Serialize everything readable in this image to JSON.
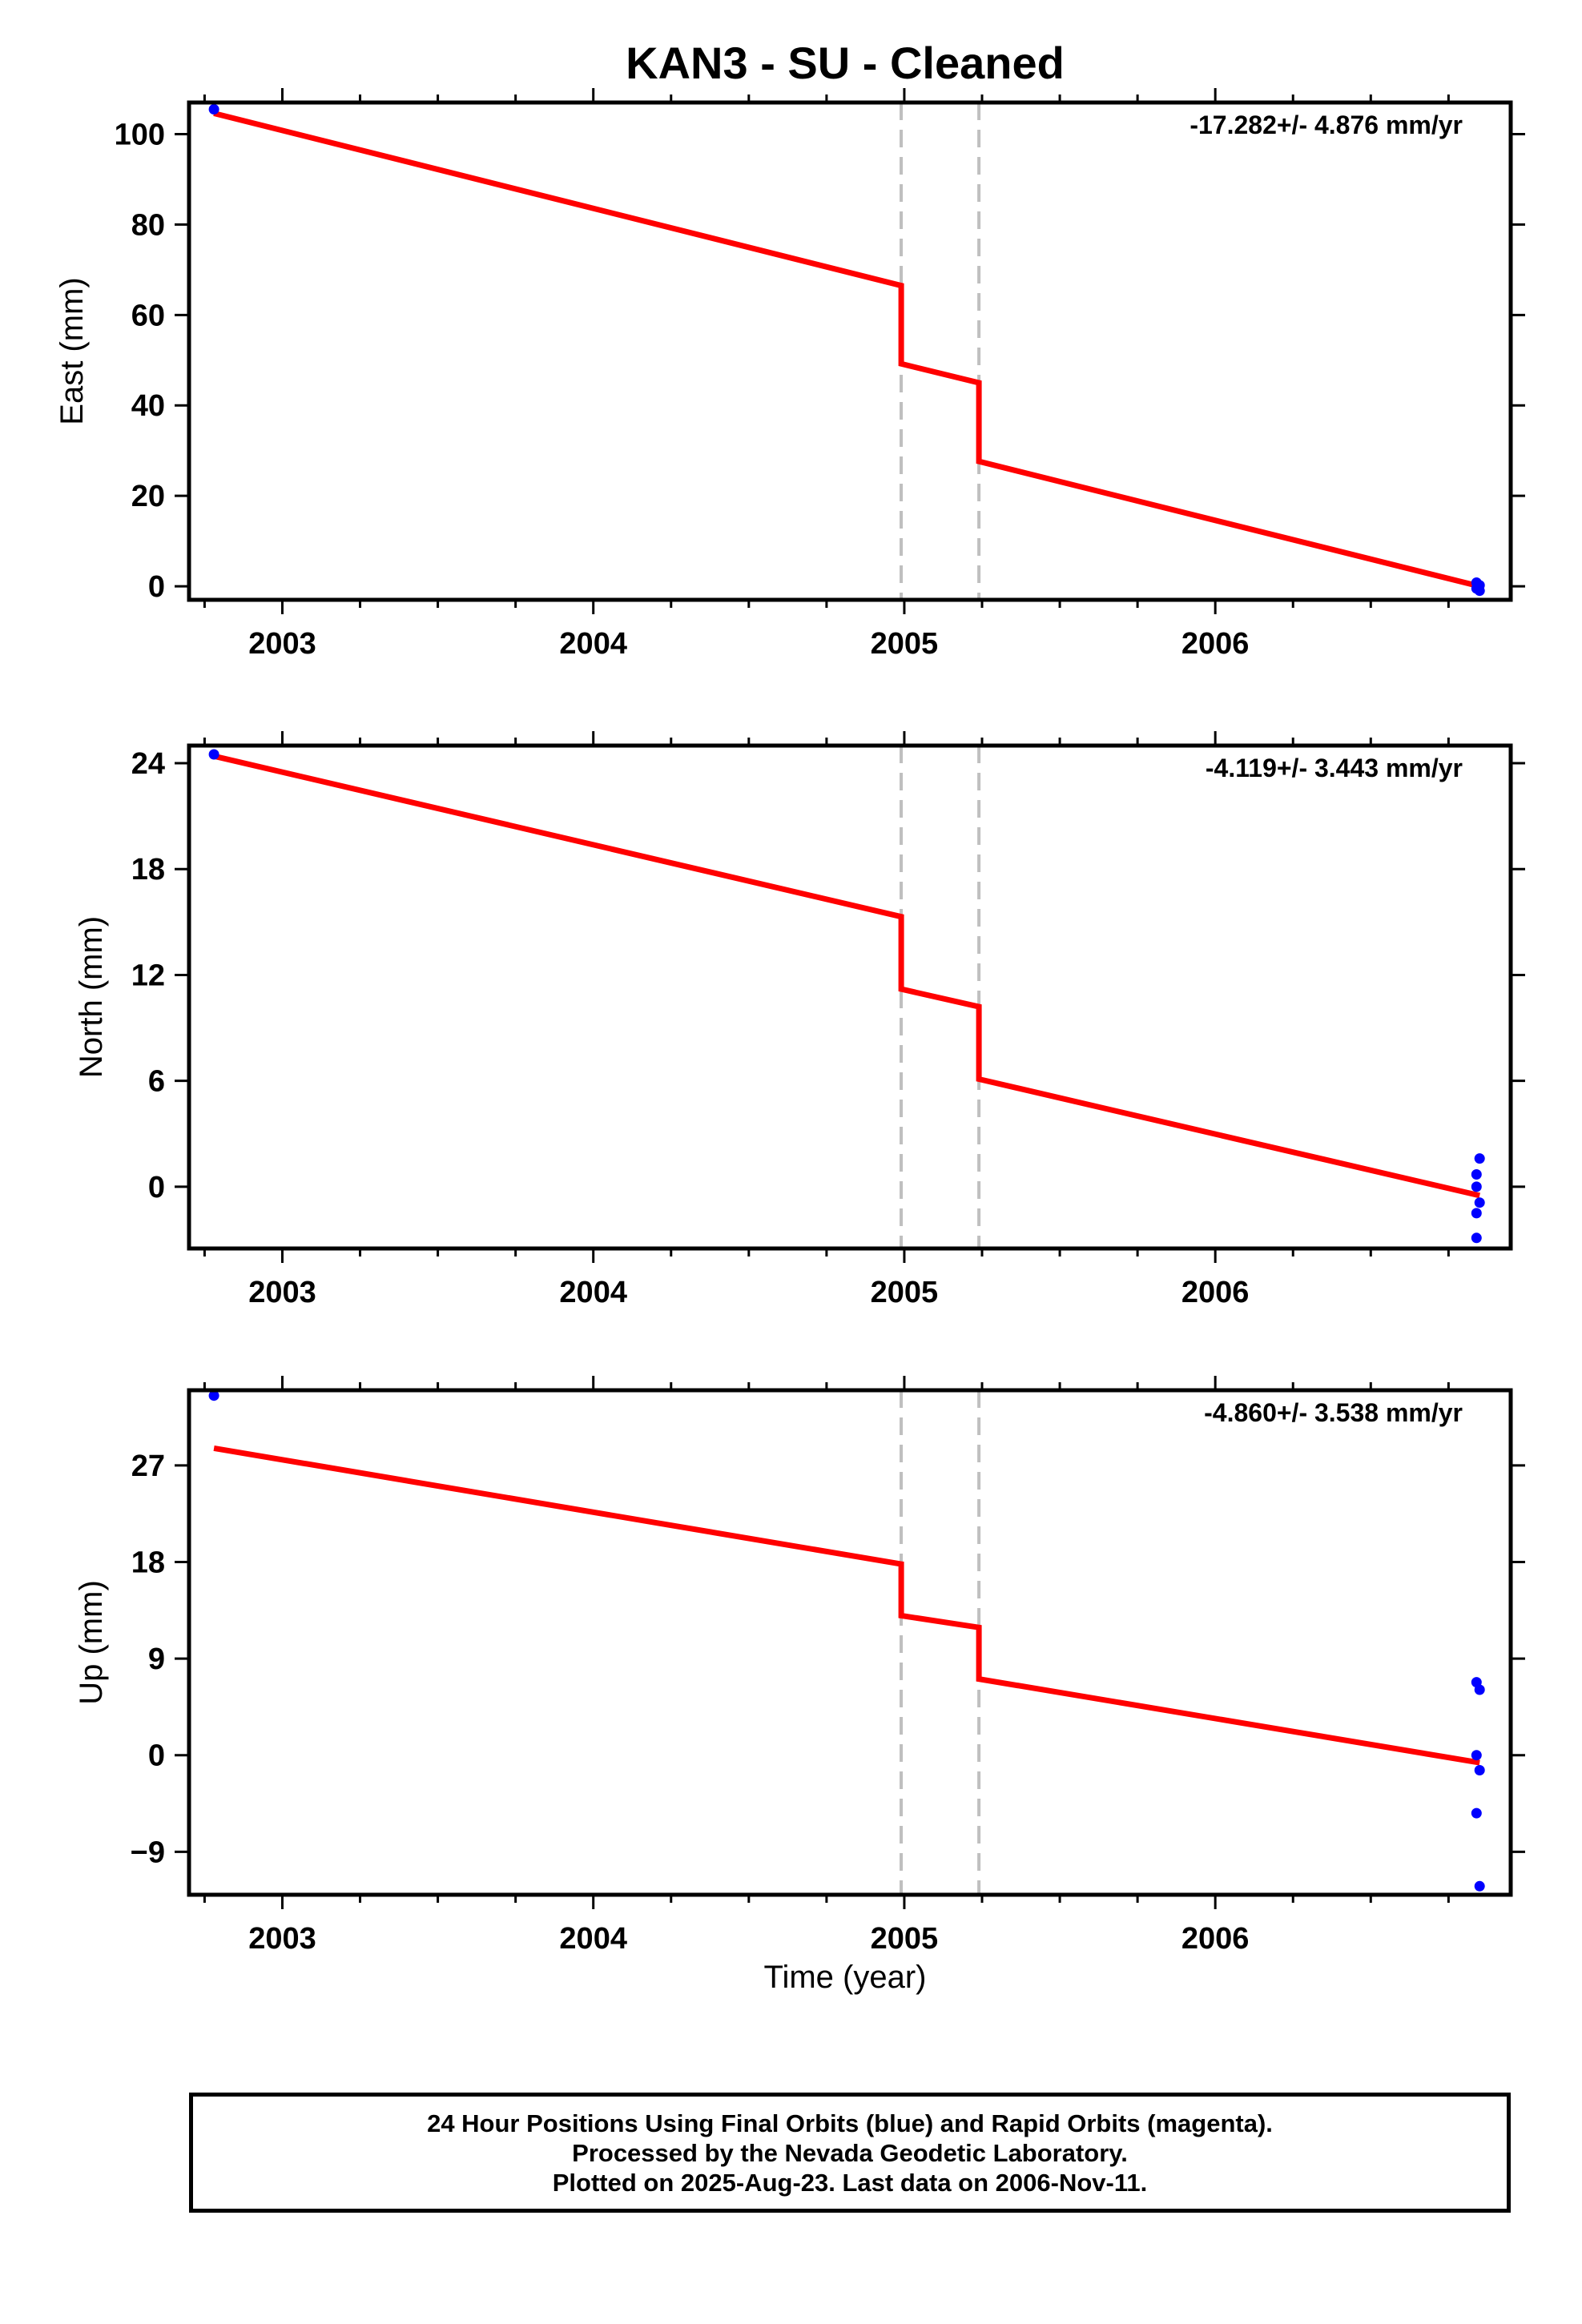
{
  "chart_data": {
    "title": "KAN3  - SU - Cleaned",
    "type": "scatter",
    "x_axis": {
      "label": "Time (year)",
      "range": [
        2002.7,
        2006.95
      ],
      "ticks": [
        2003,
        2004,
        2005,
        2006
      ],
      "tick_labels": [
        "2003",
        "2004",
        "2005",
        "2006"
      ]
    },
    "event_lines": [
      2004.99,
      2005.24
    ],
    "panels": [
      {
        "key": "east",
        "ylabel": "East (mm)",
        "ylim": [
          -3,
          107
        ],
        "yticks": [
          0,
          20,
          40,
          60,
          80,
          100
        ],
        "ytick_labels": [
          "0",
          "20",
          "40",
          "60",
          "80",
          "100"
        ],
        "rate_label": "-17.282+/- 4.876 mm/yr",
        "points": [
          [
            2002.78,
            105.5
          ],
          [
            2006.84,
            0.8
          ],
          [
            2006.84,
            -0.5
          ],
          [
            2006.85,
            0.2
          ],
          [
            2006.85,
            -1.0
          ]
        ],
        "model": [
          [
            2002.78,
            104.6
          ],
          [
            2004.99,
            66.5
          ],
          [
            2004.99,
            49.2
          ],
          [
            2005.24,
            45.0
          ],
          [
            2005.24,
            27.6
          ],
          [
            2006.85,
            0.0
          ]
        ]
      },
      {
        "key": "north",
        "ylabel": "North (mm)",
        "ylim": [
          -3.5,
          25
        ],
        "yticks": [
          0,
          6,
          12,
          18,
          24
        ],
        "ytick_labels": [
          "0",
          "6",
          "12",
          "18",
          "24"
        ],
        "rate_label": "-4.119+/- 3.443 mm/yr",
        "points": [
          [
            2002.78,
            24.5
          ],
          [
            2006.84,
            0.7
          ],
          [
            2006.84,
            0.0
          ],
          [
            2006.84,
            -1.5
          ],
          [
            2006.85,
            1.6
          ],
          [
            2006.85,
            -0.9
          ],
          [
            2006.84,
            -2.9
          ]
        ],
        "model": [
          [
            2002.78,
            24.4
          ],
          [
            2004.99,
            15.3
          ],
          [
            2004.99,
            11.2
          ],
          [
            2005.24,
            10.2
          ],
          [
            2005.24,
            6.1
          ],
          [
            2006.85,
            -0.5
          ]
        ]
      },
      {
        "key": "up",
        "ylabel": "Up (mm)",
        "ylim": [
          -13,
          34
        ],
        "yticks": [
          -9,
          0,
          9,
          18,
          27
        ],
        "ytick_labels": [
          "−9",
          "0",
          "9",
          "18",
          "27"
        ],
        "rate_label": "-4.860+/- 3.538 mm/yr",
        "points": [
          [
            2002.78,
            33.5
          ],
          [
            2006.84,
            6.8
          ],
          [
            2006.85,
            6.1
          ],
          [
            2006.84,
            0.0
          ],
          [
            2006.85,
            -1.4
          ],
          [
            2006.84,
            -5.4
          ],
          [
            2006.85,
            -12.2
          ]
        ],
        "model": [
          [
            2002.78,
            28.6
          ],
          [
            2004.99,
            17.8
          ],
          [
            2004.99,
            13.0
          ],
          [
            2005.24,
            11.9
          ],
          [
            2005.24,
            7.1
          ],
          [
            2006.85,
            -0.7
          ]
        ]
      }
    ],
    "point_color": "#0000ff",
    "model_color": "#ff0000",
    "event_line_color": "#bfbfbf",
    "legend": "none",
    "grid": false
  },
  "footer": {
    "lines": [
      "24 Hour Positions Using Final Orbits (blue) and Rapid Orbits (magenta).",
      "Processed by the Nevada Geodetic Laboratory.",
      "Plotted on 2025-Aug-23. Last data on 2006-Nov-11."
    ]
  }
}
